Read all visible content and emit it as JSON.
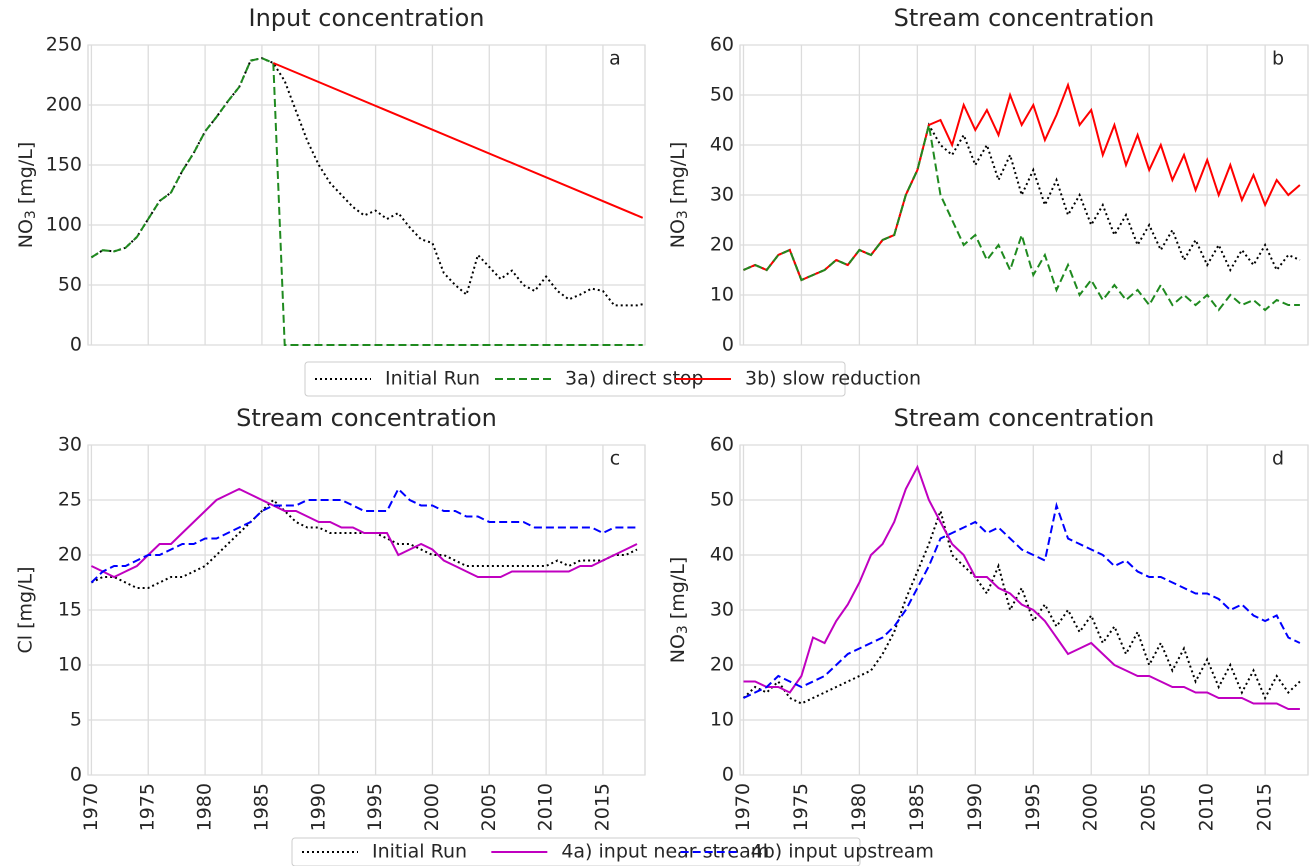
{
  "chart_data": [
    {
      "type": "line",
      "title": "Input concentration",
      "panel_label": "a",
      "ylabel": {
        "text": "NO",
        "sub": "3",
        "after": " [mg/L]"
      },
      "xlim": [
        1969.7,
        2018.7
      ],
      "xticks": [
        1970,
        1975,
        1980,
        1985,
        1990,
        1995,
        2000,
        2005,
        2010,
        2015
      ],
      "show_xtick_labels": false,
      "ylim": [
        0,
        250
      ],
      "yticks": [
        0,
        50,
        100,
        150,
        200,
        250
      ],
      "grid": true,
      "legend": "below",
      "series": [
        {
          "name": "Initial Run",
          "color": "#000000",
          "dash": "dotted",
          "x": [
            1970,
            1971,
            1972,
            1973,
            1974,
            1975,
            1976,
            1977,
            1978,
            1979,
            1980,
            1981,
            1982,
            1983,
            1984,
            1985,
            1986,
            1987,
            1988,
            1989,
            1990,
            1991,
            1992,
            1993,
            1994,
            1995,
            1996,
            1997,
            1998,
            1999,
            2000,
            2001,
            2002,
            2003,
            2004,
            2005,
            2006,
            2007,
            2008,
            2009,
            2010,
            2011,
            2012,
            2013,
            2014,
            2015,
            2016,
            2017,
            2018,
            2018.5
          ],
          "values": [
            73,
            79,
            78,
            81,
            90,
            105,
            120,
            127,
            145,
            160,
            178,
            190,
            203,
            215,
            237,
            239,
            235,
            220,
            195,
            170,
            150,
            135,
            125,
            115,
            108,
            112,
            105,
            110,
            98,
            88,
            85,
            60,
            50,
            42,
            75,
            65,
            55,
            62,
            50,
            45,
            57,
            45,
            38,
            42,
            47,
            45,
            33,
            33,
            33,
            34
          ]
        },
        {
          "name": "3a) direct stop",
          "color": "#1f8a1f",
          "dash": "dashed",
          "x": [
            1970,
            1971,
            1972,
            1973,
            1974,
            1975,
            1976,
            1977,
            1978,
            1979,
            1980,
            1981,
            1982,
            1983,
            1984,
            1985,
            1986,
            1987,
            2018.5
          ],
          "values": [
            73,
            79,
            78,
            81,
            90,
            105,
            120,
            127,
            145,
            160,
            178,
            190,
            203,
            215,
            237,
            239,
            235,
            0,
            0
          ]
        },
        {
          "name": "3b) slow reduction",
          "color": "#ff0000",
          "dash": "solid",
          "x": [
            1986,
            2018.5
          ],
          "values": [
            235,
            106
          ]
        }
      ]
    },
    {
      "type": "line",
      "title": "Stream concentration",
      "panel_label": "b",
      "ylabel": {
        "text": "NO",
        "sub": "3",
        "after": " [mg/L]"
      },
      "xlim": [
        1969.7,
        2018.7
      ],
      "xticks": [
        1970,
        1975,
        1980,
        1985,
        1990,
        1995,
        2000,
        2005,
        2010,
        2015
      ],
      "show_xtick_labels": false,
      "ylim": [
        0,
        60
      ],
      "yticks": [
        0,
        10,
        20,
        30,
        40,
        50,
        60
      ],
      "grid": true,
      "x": [
        1970,
        1971,
        1972,
        1973,
        1974,
        1975,
        1976,
        1977,
        1978,
        1979,
        1980,
        1981,
        1982,
        1983,
        1984,
        1985,
        1986,
        1987,
        1988,
        1989,
        1990,
        1991,
        1992,
        1993,
        1994,
        1995,
        1996,
        1997,
        1998,
        1999,
        2000,
        2001,
        2002,
        2003,
        2004,
        2005,
        2006,
        2007,
        2008,
        2009,
        2010,
        2011,
        2012,
        2013,
        2014,
        2015,
        2016,
        2017,
        2018
      ],
      "series": [
        {
          "name": "Initial Run",
          "color": "#000000",
          "dash": "dotted",
          "values": [
            15,
            16,
            15,
            18,
            19,
            13,
            14,
            15,
            17,
            16,
            19,
            18,
            21,
            22,
            30,
            35,
            44,
            40,
            38,
            42,
            36,
            40,
            33,
            38,
            30,
            35,
            28,
            33,
            26,
            30,
            24,
            28,
            22,
            26,
            20,
            24,
            19,
            23,
            17,
            21,
            16,
            20,
            15,
            19,
            16,
            20,
            15,
            18,
            17
          ]
        },
        {
          "name": "3b) slow reduction",
          "color": "#ff0000",
          "dash": "solid",
          "values": [
            15,
            16,
            15,
            18,
            19,
            13,
            14,
            15,
            17,
            16,
            19,
            18,
            21,
            22,
            30,
            35,
            44,
            45,
            40,
            48,
            43,
            47,
            42,
            50,
            44,
            48,
            41,
            46,
            52,
            44,
            47,
            38,
            44,
            36,
            42,
            35,
            40,
            33,
            38,
            31,
            37,
            30,
            36,
            29,
            34,
            28,
            33,
            30,
            32
          ]
        },
        {
          "name": "3a) direct stop",
          "color": "#1f8a1f",
          "dash": "dashed",
          "values": [
            15,
            16,
            15,
            18,
            19,
            13,
            14,
            15,
            17,
            16,
            19,
            18,
            21,
            22,
            30,
            35,
            44,
            30,
            25,
            20,
            22,
            17,
            20,
            15,
            22,
            14,
            18,
            11,
            16,
            10,
            13,
            9,
            12,
            9,
            11,
            8,
            12,
            8,
            10,
            8,
            10,
            7,
            10,
            8,
            9,
            7,
            9,
            8,
            8
          ]
        }
      ]
    },
    {
      "type": "line",
      "title": "Stream concentration",
      "panel_label": "c",
      "ylabel": "Cl [mg/L]",
      "xlim": [
        1969.7,
        2018.7
      ],
      "xticks": [
        1970,
        1975,
        1980,
        1985,
        1990,
        1995,
        2000,
        2005,
        2010,
        2015
      ],
      "show_xtick_labels": true,
      "ylim": [
        0,
        30
      ],
      "yticks": [
        0,
        5,
        10,
        15,
        20,
        25,
        30
      ],
      "grid": true,
      "legend": "below",
      "x": [
        1970,
        1971,
        1972,
        1973,
        1974,
        1975,
        1976,
        1977,
        1978,
        1979,
        1980,
        1981,
        1982,
        1983,
        1984,
        1985,
        1986,
        1987,
        1988,
        1989,
        1990,
        1991,
        1992,
        1993,
        1994,
        1995,
        1996,
        1997,
        1998,
        1999,
        2000,
        2001,
        2002,
        2003,
        2004,
        2005,
        2006,
        2007,
        2008,
        2009,
        2010,
        2011,
        2012,
        2013,
        2014,
        2015,
        2016,
        2017,
        2018
      ],
      "series": [
        {
          "name": "Initial Run",
          "color": "#000000",
          "dash": "dotted",
          "values": [
            17.5,
            18,
            18,
            17.5,
            17,
            17,
            17.5,
            18,
            18,
            18.5,
            19,
            20,
            21,
            22,
            23,
            24,
            25,
            24,
            23,
            22.5,
            22.5,
            22,
            22,
            22,
            22,
            22,
            21.5,
            21,
            21,
            20.5,
            20,
            20,
            19.5,
            19,
            19,
            19,
            19,
            19,
            19,
            19,
            19,
            19.5,
            19,
            19.5,
            19.5,
            19.5,
            20,
            20,
            20.5
          ]
        },
        {
          "name": "4a) input near stream",
          "color": "#c000c0",
          "dash": "solid",
          "values": [
            19,
            18.5,
            18,
            18.5,
            19,
            20,
            21,
            21,
            22,
            23,
            24,
            25,
            25.5,
            26,
            25.5,
            25,
            24.5,
            24,
            24,
            23.5,
            23,
            23,
            22.5,
            22.5,
            22,
            22,
            22,
            20,
            20.5,
            21,
            20.5,
            19.5,
            19,
            18.5,
            18,
            18,
            18,
            18.5,
            18.5,
            18.5,
            18.5,
            18.5,
            18.5,
            19,
            19,
            19.5,
            20,
            20.5,
            21
          ]
        },
        {
          "name": "4b) input upstream",
          "color": "#0000ff",
          "dash": "dashed",
          "values": [
            17.5,
            18.5,
            19,
            19,
            19.5,
            20,
            20,
            20.5,
            21,
            21,
            21.5,
            21.5,
            22,
            22.5,
            23,
            24,
            24.5,
            24.5,
            24.5,
            25,
            25,
            25,
            25,
            24.5,
            24,
            24,
            24,
            26,
            25,
            24.5,
            24.5,
            24,
            24,
            23.5,
            23.5,
            23,
            23,
            23,
            23,
            22.5,
            22.5,
            22.5,
            22.5,
            22.5,
            22.5,
            22,
            22.5,
            22.5,
            22.5
          ]
        }
      ]
    },
    {
      "type": "line",
      "title": "Stream concentration",
      "panel_label": "d",
      "ylabel": {
        "text": "NO",
        "sub": "3",
        "after": " [mg/L]"
      },
      "xlim": [
        1969.7,
        2018.7
      ],
      "xticks": [
        1970,
        1975,
        1980,
        1985,
        1990,
        1995,
        2000,
        2005,
        2010,
        2015
      ],
      "show_xtick_labels": true,
      "ylim": [
        0,
        60
      ],
      "yticks": [
        0,
        10,
        20,
        30,
        40,
        50,
        60
      ],
      "grid": true,
      "x": [
        1970,
        1971,
        1972,
        1973,
        1974,
        1975,
        1976,
        1977,
        1978,
        1979,
        1980,
        1981,
        1982,
        1983,
        1984,
        1985,
        1986,
        1987,
        1988,
        1989,
        1990,
        1991,
        1992,
        1993,
        1994,
        1995,
        1996,
        1997,
        1998,
        1999,
        2000,
        2001,
        2002,
        2003,
        2004,
        2005,
        2006,
        2007,
        2008,
        2009,
        2010,
        2011,
        2012,
        2013,
        2014,
        2015,
        2016,
        2017,
        2018
      ],
      "series": [
        {
          "name": "Initial Run",
          "color": "#000000",
          "dash": "dotted",
          "values": [
            14,
            16,
            15,
            17,
            14,
            13,
            14,
            15,
            16,
            17,
            18,
            19,
            22,
            26,
            32,
            37,
            42,
            48,
            40,
            38,
            36,
            33,
            38,
            30,
            34,
            28,
            31,
            27,
            30,
            26,
            29,
            24,
            27,
            22,
            26,
            20,
            24,
            19,
            23,
            17,
            21,
            16,
            20,
            15,
            19,
            14,
            18,
            15,
            17
          ]
        },
        {
          "name": "4a) input near stream",
          "color": "#c000c0",
          "dash": "solid",
          "values": [
            17,
            17,
            16,
            16,
            15,
            18,
            25,
            24,
            28,
            31,
            35,
            40,
            42,
            46,
            52,
            56,
            50,
            46,
            42,
            40,
            36,
            36,
            34,
            33,
            31,
            30,
            28,
            25,
            22,
            23,
            24,
            22,
            20,
            19,
            18,
            18,
            17,
            16,
            16,
            15,
            15,
            14,
            14,
            14,
            13,
            13,
            13,
            12,
            12
          ]
        },
        {
          "name": "4b) input upstream",
          "color": "#0000ff",
          "dash": "dashed",
          "values": [
            14,
            15,
            16,
            18,
            17,
            16,
            17,
            18,
            20,
            22,
            23,
            24,
            25,
            27,
            30,
            34,
            38,
            43,
            44,
            45,
            46,
            44,
            45,
            43,
            41,
            40,
            39,
            49,
            43,
            42,
            41,
            40,
            38,
            39,
            37,
            36,
            36,
            35,
            34,
            33,
            33,
            32,
            30,
            31,
            29,
            28,
            29,
            25,
            24
          ]
        }
      ]
    }
  ]
}
